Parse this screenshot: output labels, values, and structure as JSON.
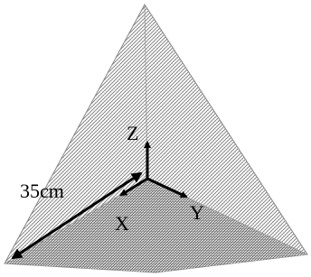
{
  "labels": {
    "z": "Z",
    "x": "X",
    "y": "Y",
    "length": "35cm"
  }
}
